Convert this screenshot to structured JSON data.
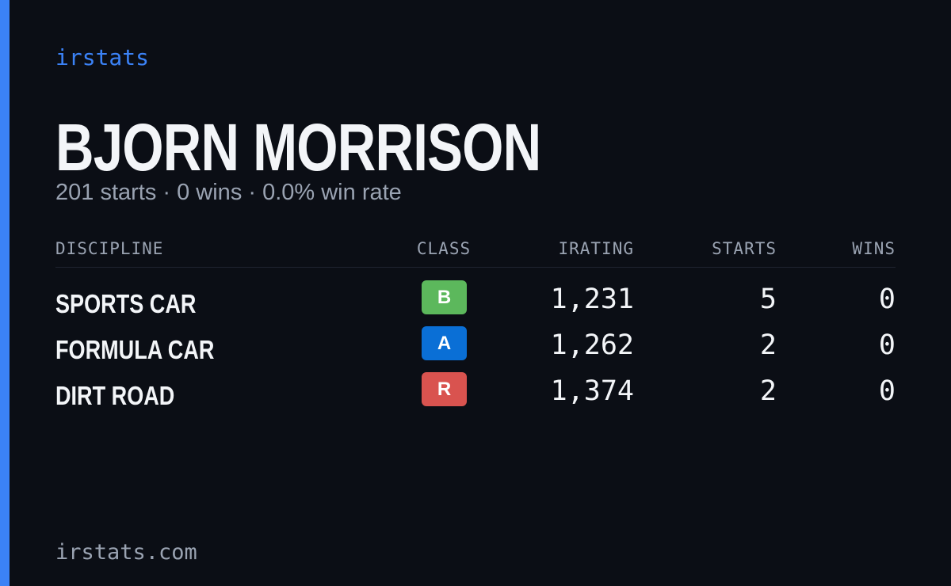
{
  "brand": "irstats",
  "driver": {
    "name": "BJORN MORRISON",
    "summary": "201 starts · 0 wins · 0.0% win rate"
  },
  "table": {
    "headers": [
      "DISCIPLINE",
      "CLASS",
      "IRATING",
      "STARTS",
      "WINS"
    ],
    "rows": [
      {
        "discipline": "SPORTS CAR",
        "class": "B",
        "class_color": "#5cb85c",
        "irating": "1,231",
        "starts": "5",
        "wins": "0"
      },
      {
        "discipline": "FORMULA CAR",
        "class": "A",
        "class_color": "#0a6fd6",
        "irating": "1,262",
        "starts": "2",
        "wins": "0"
      },
      {
        "discipline": "DIRT ROAD",
        "class": "R",
        "class_color": "#d9534f",
        "irating": "1,374",
        "starts": "2",
        "wins": "0"
      }
    ]
  },
  "footer": "irstats.com"
}
